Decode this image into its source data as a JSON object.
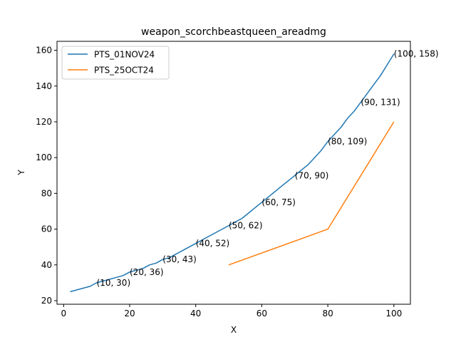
{
  "chart_data": {
    "type": "line",
    "title": "weapon_scorchbeastqueen_areadmg",
    "xlabel": "X",
    "ylabel": "Y",
    "xlim": [
      -2,
      105
    ],
    "ylim": [
      18,
      165
    ],
    "xticks": [
      0,
      20,
      40,
      60,
      80,
      100
    ],
    "yticks": [
      20,
      40,
      60,
      80,
      100,
      120,
      140,
      160
    ],
    "grid": false,
    "legend_position": "upper-left",
    "series": [
      {
        "name": "PTS_01NOV24",
        "color": "#1f77b4",
        "x": [
          2,
          4,
          6,
          8,
          10,
          12,
          14,
          16,
          18,
          20,
          22,
          24,
          26,
          28,
          30,
          32,
          34,
          36,
          38,
          40,
          42,
          44,
          46,
          48,
          50,
          52,
          54,
          56,
          58,
          60,
          62,
          64,
          66,
          68,
          70,
          72,
          74,
          76,
          78,
          80,
          82,
          84,
          86,
          88,
          90,
          92,
          94,
          96,
          98,
          100
        ],
        "y": [
          25,
          26,
          27,
          28,
          30,
          31,
          32,
          33,
          34,
          36,
          37,
          38,
          40,
          41,
          43,
          44,
          46,
          48,
          50,
          52,
          54,
          56,
          58,
          60,
          62,
          64,
          66,
          69,
          72,
          75,
          78,
          81,
          84,
          87,
          90,
          93,
          96,
          100,
          104,
          109,
          113,
          117,
          122,
          126,
          131,
          136,
          141,
          146,
          152,
          158
        ]
      },
      {
        "name": "PTS_25OCT24",
        "color": "#ff7f0e",
        "x": [
          50,
          80,
          100
        ],
        "y": [
          40,
          60,
          120
        ]
      }
    ],
    "annotations": [
      {
        "x": 10,
        "y": 30,
        "text": "(10, 30)"
      },
      {
        "x": 20,
        "y": 36,
        "text": "(20, 36)"
      },
      {
        "x": 30,
        "y": 43,
        "text": "(30, 43)"
      },
      {
        "x": 40,
        "y": 52,
        "text": "(40, 52)"
      },
      {
        "x": 50,
        "y": 62,
        "text": "(50, 62)"
      },
      {
        "x": 60,
        "y": 75,
        "text": "(60, 75)"
      },
      {
        "x": 70,
        "y": 90,
        "text": "(70, 90)"
      },
      {
        "x": 80,
        "y": 109,
        "text": "(80, 109)"
      },
      {
        "x": 90,
        "y": 131,
        "text": "(90, 131)"
      },
      {
        "x": 100,
        "y": 158,
        "text": "(100, 158)"
      }
    ]
  }
}
